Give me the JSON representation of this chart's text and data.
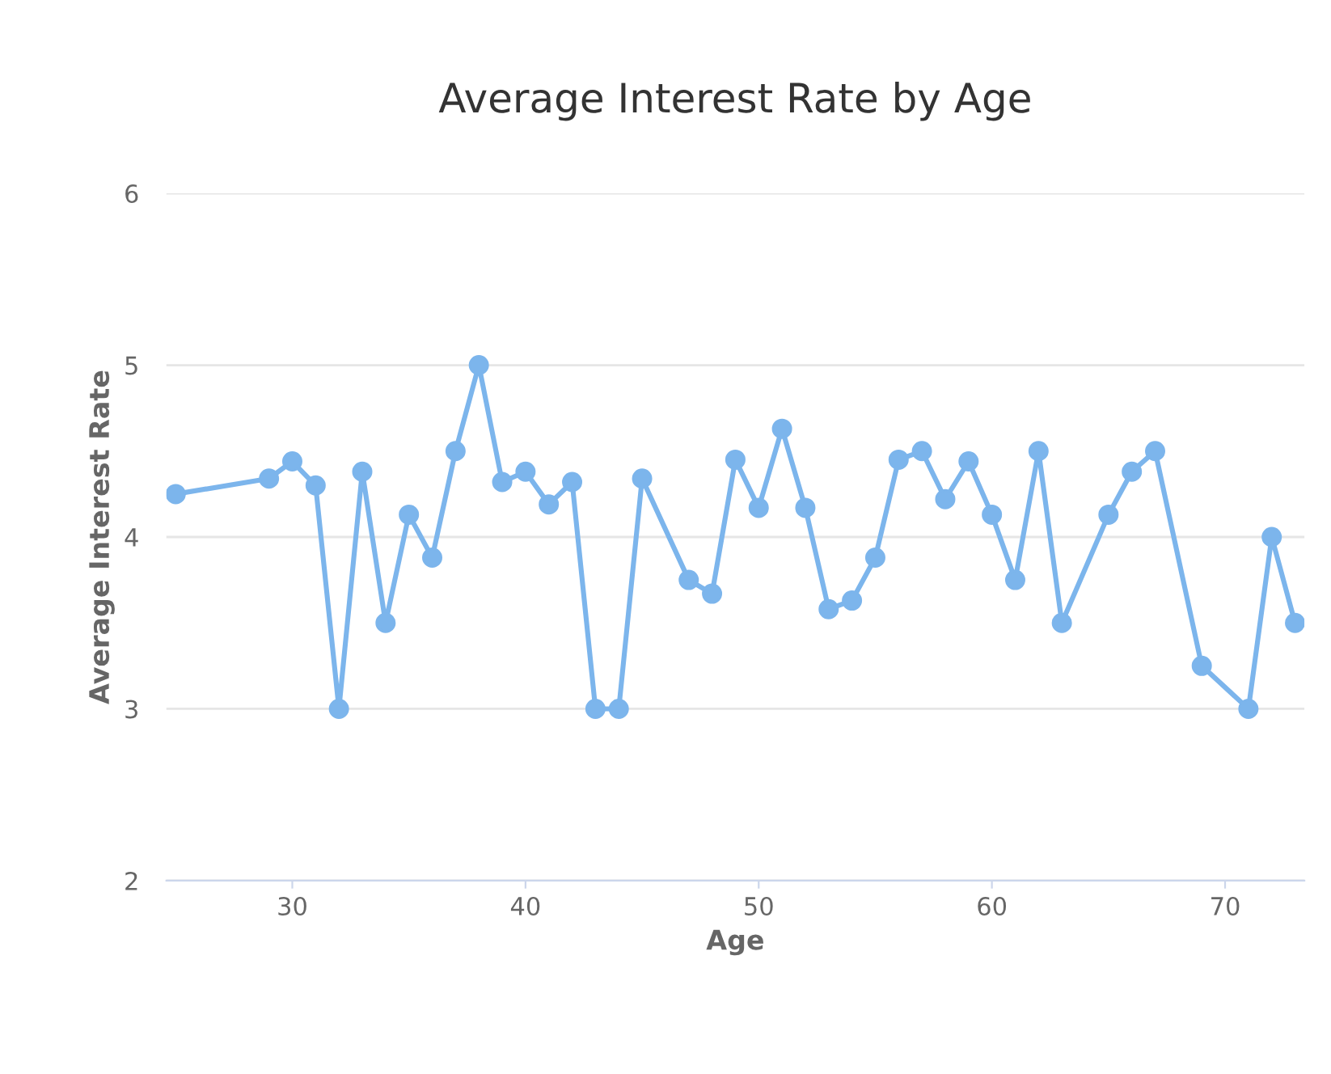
{
  "chart_data": {
    "type": "line",
    "title": "Average Interest Rate by Age",
    "xlabel": "Age",
    "ylabel": "Average Interest Rate",
    "x": [
      25,
      29,
      30,
      31,
      32,
      33,
      34,
      35,
      36,
      37,
      38,
      39,
      40,
      41,
      42,
      43,
      44,
      45,
      47,
      48,
      49,
      50,
      51,
      52,
      53,
      54,
      55,
      56,
      57,
      58,
      59,
      60,
      61,
      62,
      63,
      65,
      66,
      67,
      69,
      71,
      72,
      73
    ],
    "series": [
      {
        "color": "#7cb5ec",
        "values": [
          4.25,
          4.34,
          4.44,
          4.3,
          3.0,
          4.38,
          3.5,
          4.13,
          3.88,
          4.5,
          5.0,
          4.32,
          4.38,
          4.19,
          4.32,
          3.0,
          3.0,
          4.34,
          3.75,
          3.67,
          4.45,
          4.17,
          4.63,
          4.17,
          3.58,
          3.63,
          3.88,
          4.45,
          4.5,
          4.22,
          4.44,
          4.13,
          3.75,
          4.5,
          3.5,
          4.13,
          4.38,
          4.5,
          3.25,
          3.0,
          4.0,
          3.5
        ]
      }
    ],
    "xlim": [
      24.6,
      73.4
    ],
    "xticks": [
      30,
      40,
      50,
      60,
      70
    ],
    "ylim": [
      2,
      6
    ],
    "yticks": [
      2,
      3,
      4,
      5,
      6
    ],
    "grid": "y",
    "legend": false,
    "marker": "circle",
    "line_style": "solid"
  }
}
